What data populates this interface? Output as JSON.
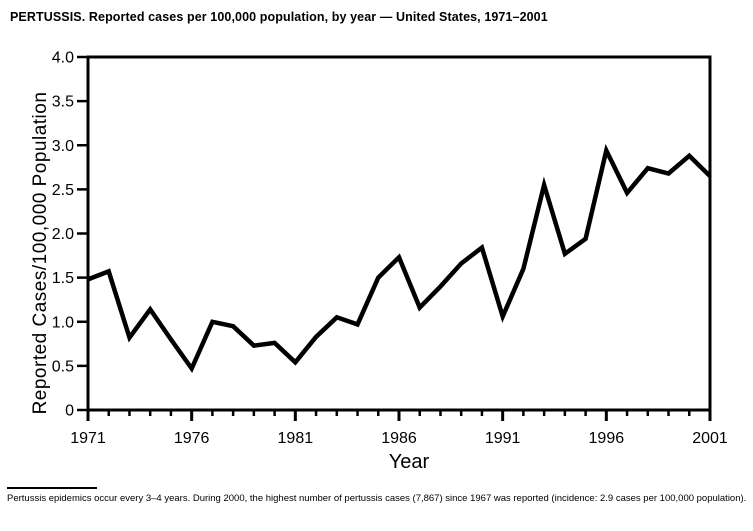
{
  "chart_data": {
    "type": "line",
    "title": "PERTUSSIS. Reported cases per 100,000 population, by year — United States, 1971–2001",
    "caption": "Pertussis epidemics occur every 3–4 years. During 2000, the highest number of pertussis cases (7,867) since 1967 was reported (incidence: 2.9 cases per 100,000 population).",
    "xlabel": "Year",
    "ylabel": "Reported Cases/100,000 Population",
    "series": [
      {
        "name": "Pertussis reported cases per 100,000 population",
        "x": [
          1971,
          1972,
          1973,
          1974,
          1975,
          1976,
          1977,
          1978,
          1979,
          1980,
          1981,
          1982,
          1983,
          1984,
          1985,
          1986,
          1987,
          1988,
          1989,
          1990,
          1991,
          1992,
          1993,
          1994,
          1995,
          1996,
          1997,
          1998,
          1999,
          2000,
          2001
        ],
        "values": [
          1.48,
          1.57,
          0.82,
          1.14,
          0.8,
          0.47,
          1.0,
          0.95,
          0.73,
          0.76,
          0.54,
          0.83,
          1.05,
          0.97,
          1.5,
          1.73,
          1.16,
          1.4,
          1.66,
          1.84,
          1.06,
          1.6,
          2.55,
          1.77,
          1.94,
          2.94,
          2.46,
          2.74,
          2.68,
          2.88,
          2.65
        ]
      }
    ],
    "xlim": [
      1971,
      2001
    ],
    "ylim": [
      0,
      4.0
    ],
    "yticks": [
      0,
      0.5,
      1.0,
      1.5,
      2.0,
      2.5,
      3.0,
      3.5,
      4.0
    ],
    "ytick_labels": [
      "0",
      "0.5",
      "1.0",
      "1.5",
      "2.0",
      "2.5",
      "3.0",
      "3.5",
      "4.0"
    ],
    "xticks_major": [
      1971,
      1976,
      1981,
      1986,
      1991,
      1996,
      2001
    ],
    "xtick_minor_step": 1,
    "grid": false,
    "legend": false,
    "line_color": "#000000",
    "axis_color": "#000000",
    "background": "#ffffff"
  }
}
